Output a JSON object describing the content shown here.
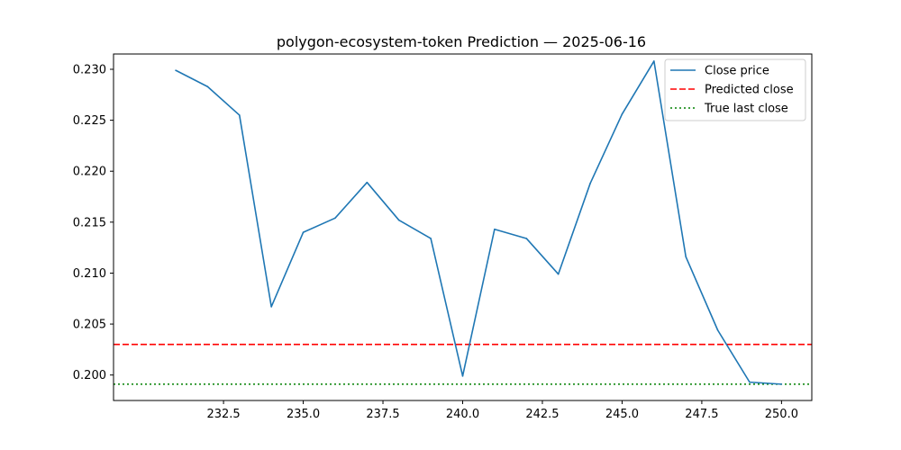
{
  "chart_data": {
    "type": "line",
    "title": "polygon-ecosystem-token Prediction — 2025-06-16",
    "xlabel": "",
    "ylabel": "",
    "xlim": [
      229.05,
      250.95
    ],
    "ylim": [
      0.1975,
      0.2315
    ],
    "x_ticks": [
      232.5,
      235.0,
      237.5,
      240.0,
      242.5,
      245.0,
      247.5,
      250.0
    ],
    "x_tick_labels": [
      "232.5",
      "235.0",
      "237.5",
      "240.0",
      "242.5",
      "245.0",
      "247.5",
      "250.0"
    ],
    "y_ticks": [
      0.2,
      0.205,
      0.21,
      0.215,
      0.22,
      0.225,
      0.23
    ],
    "y_tick_labels": [
      "0.200",
      "0.205",
      "0.210",
      "0.215",
      "0.220",
      "0.225",
      "0.230"
    ],
    "grid": false,
    "legend_position": "top-right",
    "series": [
      {
        "name": "Close price",
        "style": "solid",
        "color": "#1f77b4",
        "x": [
          231,
          232,
          233,
          234,
          235,
          236,
          237,
          238,
          239,
          240,
          241,
          242,
          243,
          244,
          245,
          246,
          247,
          248,
          249,
          250
        ],
        "values": [
          0.2299,
          0.2283,
          0.2255,
          0.2067,
          0.214,
          0.2154,
          0.2189,
          0.2152,
          0.2134,
          0.1999,
          0.2143,
          0.2134,
          0.2099,
          0.2188,
          0.2256,
          0.2308,
          0.2116,
          0.2044,
          0.1993,
          0.1991
        ]
      }
    ],
    "hlines": [
      {
        "name": "Predicted close",
        "value": 0.203,
        "style": "dashed",
        "color": "#ff0000"
      },
      {
        "name": "True last close",
        "value": 0.1991,
        "style": "dotted",
        "color": "#008000"
      }
    ]
  }
}
